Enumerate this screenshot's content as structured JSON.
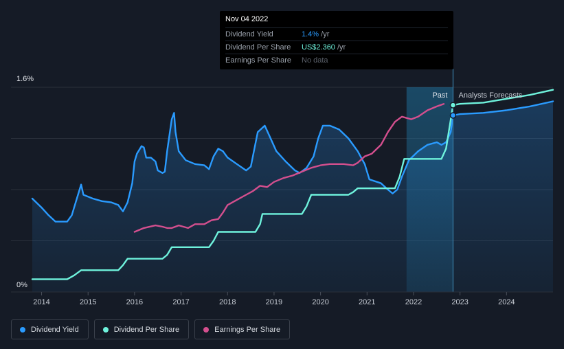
{
  "chart_data": {
    "type": "line",
    "y_axis": {
      "top_label": "1.6%",
      "bottom_label": "0%",
      "ylim": [
        0,
        1.6
      ],
      "gridlines": 4
    },
    "x_axis": {
      "xlim": [
        2013.8,
        2025.0
      ],
      "tick_labels": [
        "2014",
        "2015",
        "2016",
        "2017",
        "2018",
        "2019",
        "2020",
        "2021",
        "2022",
        "2023",
        "2024"
      ]
    },
    "regions": {
      "past_label": "Past",
      "forecast_label": "Analysts Forecasts",
      "highlight_start": 2021.85,
      "divider": 2022.85
    },
    "series": [
      {
        "name": "Dividend Yield",
        "color": "#2a9bff",
        "fill": true,
        "points": [
          [
            2013.8,
            0.73
          ],
          [
            2014.0,
            0.66
          ],
          [
            2014.15,
            0.6
          ],
          [
            2014.3,
            0.55
          ],
          [
            2014.4,
            0.55
          ],
          [
            2014.55,
            0.55
          ],
          [
            2014.65,
            0.6
          ],
          [
            2014.75,
            0.72
          ],
          [
            2014.85,
            0.84
          ],
          [
            2014.9,
            0.76
          ],
          [
            2015.1,
            0.73
          ],
          [
            2015.3,
            0.71
          ],
          [
            2015.5,
            0.7
          ],
          [
            2015.65,
            0.68
          ],
          [
            2015.75,
            0.63
          ],
          [
            2015.85,
            0.7
          ],
          [
            2015.95,
            0.85
          ],
          [
            2016.0,
            1.02
          ],
          [
            2016.05,
            1.08
          ],
          [
            2016.15,
            1.14
          ],
          [
            2016.2,
            1.13
          ],
          [
            2016.25,
            1.05
          ],
          [
            2016.35,
            1.05
          ],
          [
            2016.45,
            1.02
          ],
          [
            2016.5,
            0.95
          ],
          [
            2016.6,
            0.93
          ],
          [
            2016.65,
            0.94
          ],
          [
            2016.7,
            1.1
          ],
          [
            2016.8,
            1.35
          ],
          [
            2016.85,
            1.4
          ],
          [
            2016.88,
            1.25
          ],
          [
            2016.95,
            1.1
          ],
          [
            2017.1,
            1.03
          ],
          [
            2017.3,
            1.0
          ],
          [
            2017.5,
            0.99
          ],
          [
            2017.6,
            0.96
          ],
          [
            2017.7,
            1.06
          ],
          [
            2017.8,
            1.12
          ],
          [
            2017.9,
            1.1
          ],
          [
            2018.0,
            1.05
          ],
          [
            2018.2,
            1.0
          ],
          [
            2018.4,
            0.95
          ],
          [
            2018.5,
            0.98
          ],
          [
            2018.65,
            1.25
          ],
          [
            2018.8,
            1.3
          ],
          [
            2018.9,
            1.22
          ],
          [
            2019.05,
            1.1
          ],
          [
            2019.25,
            1.02
          ],
          [
            2019.45,
            0.95
          ],
          [
            2019.55,
            0.93
          ],
          [
            2019.7,
            0.97
          ],
          [
            2019.85,
            1.06
          ],
          [
            2019.95,
            1.2
          ],
          [
            2020.05,
            1.3
          ],
          [
            2020.2,
            1.3
          ],
          [
            2020.4,
            1.27
          ],
          [
            2020.6,
            1.2
          ],
          [
            2020.8,
            1.1
          ],
          [
            2020.95,
            1.0
          ],
          [
            2021.05,
            0.88
          ],
          [
            2021.3,
            0.85
          ],
          [
            2021.45,
            0.8
          ],
          [
            2021.55,
            0.77
          ],
          [
            2021.65,
            0.8
          ],
          [
            2021.75,
            0.9
          ],
          [
            2021.9,
            1.03
          ],
          [
            2022.1,
            1.1
          ],
          [
            2022.3,
            1.15
          ],
          [
            2022.5,
            1.17
          ],
          [
            2022.6,
            1.15
          ],
          [
            2022.7,
            1.17
          ],
          [
            2022.8,
            1.25
          ],
          [
            2022.85,
            1.38
          ],
          [
            2023.0,
            1.39
          ],
          [
            2023.5,
            1.4
          ],
          [
            2024.0,
            1.42
          ],
          [
            2024.5,
            1.45
          ],
          [
            2025.0,
            1.49
          ]
        ]
      },
      {
        "name": "Dividend Per Share",
        "color": "#6ff3dd",
        "fill": false,
        "points": [
          [
            2013.8,
            0.1
          ],
          [
            2014.55,
            0.1
          ],
          [
            2014.7,
            0.13
          ],
          [
            2014.85,
            0.17
          ],
          [
            2015.55,
            0.17
          ],
          [
            2015.65,
            0.17
          ],
          [
            2015.75,
            0.21
          ],
          [
            2015.85,
            0.26
          ],
          [
            2016.6,
            0.26
          ],
          [
            2016.7,
            0.29
          ],
          [
            2016.8,
            0.35
          ],
          [
            2017.6,
            0.35
          ],
          [
            2017.7,
            0.4
          ],
          [
            2017.8,
            0.47
          ],
          [
            2018.6,
            0.47
          ],
          [
            2018.7,
            0.53
          ],
          [
            2018.75,
            0.61
          ],
          [
            2019.6,
            0.61
          ],
          [
            2019.7,
            0.67
          ],
          [
            2019.8,
            0.76
          ],
          [
            2020.6,
            0.76
          ],
          [
            2020.7,
            0.78
          ],
          [
            2020.8,
            0.81
          ],
          [
            2021.6,
            0.81
          ],
          [
            2021.7,
            0.9
          ],
          [
            2021.8,
            1.04
          ],
          [
            2022.6,
            1.04
          ],
          [
            2022.7,
            1.12
          ],
          [
            2022.85,
            1.46
          ],
          [
            2023.0,
            1.47
          ],
          [
            2023.5,
            1.48
          ],
          [
            2024.0,
            1.51
          ],
          [
            2024.5,
            1.54
          ],
          [
            2025.0,
            1.58
          ]
        ]
      },
      {
        "name": "Earnings Per Share",
        "color": "#d44f8e",
        "fill": false,
        "points": [
          [
            2016.0,
            0.47
          ],
          [
            2016.2,
            0.5
          ],
          [
            2016.45,
            0.52
          ],
          [
            2016.6,
            0.51
          ],
          [
            2016.7,
            0.5
          ],
          [
            2016.8,
            0.5
          ],
          [
            2016.95,
            0.52
          ],
          [
            2017.15,
            0.5
          ],
          [
            2017.3,
            0.53
          ],
          [
            2017.5,
            0.53
          ],
          [
            2017.65,
            0.56
          ],
          [
            2017.8,
            0.57
          ],
          [
            2017.9,
            0.62
          ],
          [
            2018.0,
            0.68
          ],
          [
            2018.2,
            0.72
          ],
          [
            2018.4,
            0.76
          ],
          [
            2018.55,
            0.79
          ],
          [
            2018.7,
            0.83
          ],
          [
            2018.85,
            0.82
          ],
          [
            2019.0,
            0.86
          ],
          [
            2019.2,
            0.89
          ],
          [
            2019.4,
            0.91
          ],
          [
            2019.6,
            0.94
          ],
          [
            2019.8,
            0.97
          ],
          [
            2020.0,
            0.99
          ],
          [
            2020.2,
            1.0
          ],
          [
            2020.5,
            1.0
          ],
          [
            2020.7,
            0.99
          ],
          [
            2020.8,
            1.01
          ],
          [
            2020.95,
            1.06
          ],
          [
            2021.1,
            1.08
          ],
          [
            2021.3,
            1.15
          ],
          [
            2021.45,
            1.25
          ],
          [
            2021.6,
            1.33
          ],
          [
            2021.75,
            1.37
          ],
          [
            2021.95,
            1.35
          ],
          [
            2022.1,
            1.37
          ],
          [
            2022.3,
            1.42
          ],
          [
            2022.5,
            1.45
          ],
          [
            2022.65,
            1.47
          ]
        ]
      }
    ]
  },
  "tooltip": {
    "date": "Nov 04 2022",
    "rows": [
      {
        "label": "Dividend Yield",
        "value": "1.4%",
        "unit": " /yr"
      },
      {
        "label": "Dividend Per Share",
        "value": "US$2.360",
        "unit": " /yr"
      },
      {
        "label": "Earnings Per Share",
        "value": "No data",
        "unit": ""
      }
    ]
  },
  "legend": {
    "items": [
      {
        "label": "Dividend Yield",
        "color": "#2a9bff"
      },
      {
        "label": "Dividend Per Share",
        "color": "#6ff3dd"
      },
      {
        "label": "Earnings Per Share",
        "color": "#d44f8e"
      }
    ]
  }
}
